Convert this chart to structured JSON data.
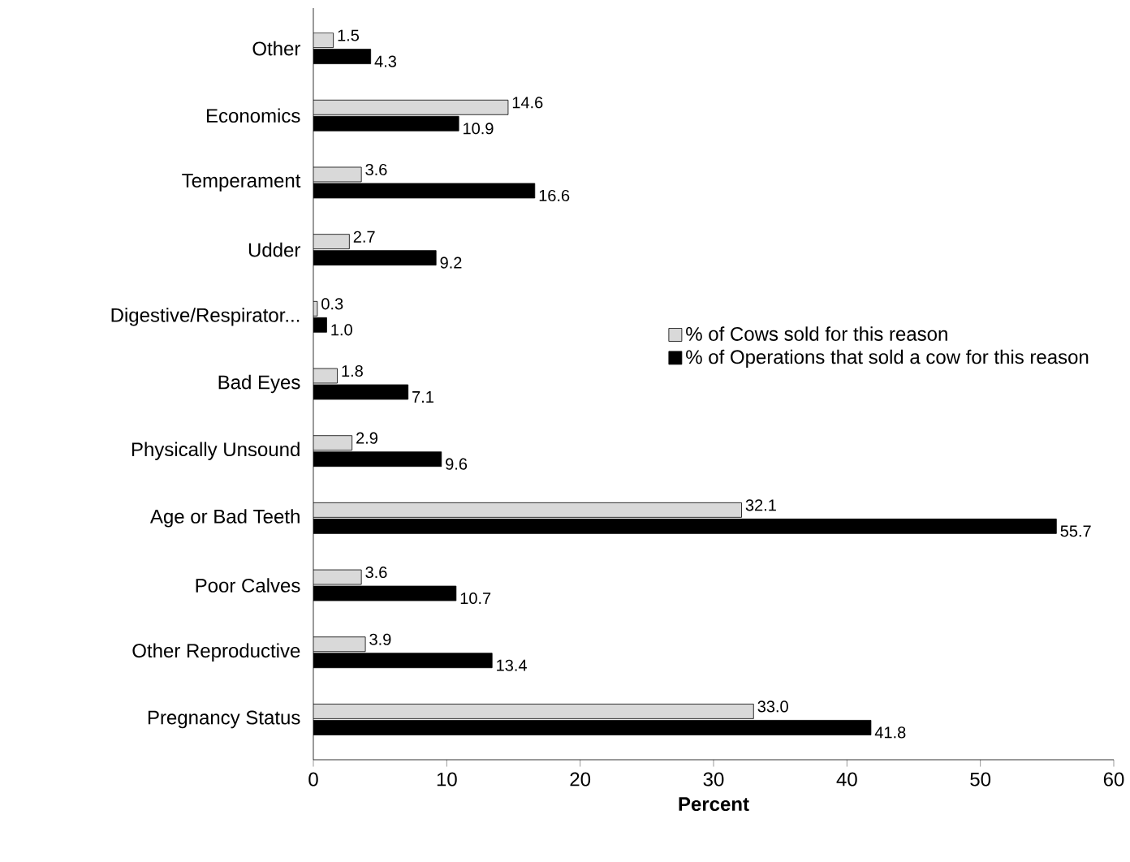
{
  "chart_data": {
    "type": "bar",
    "orientation": "horizontal",
    "xlabel": "Percent",
    "categories": [
      "Other",
      "Economics",
      "Temperament",
      "Udder",
      "Digestive/Respirator...",
      "Bad Eyes",
      "Physically Unsound",
      "Age or Bad Teeth",
      "Poor Calves",
      "Other Reproductive",
      "Pregnancy Status"
    ],
    "series": [
      {
        "name": "% of Cows sold for this reason",
        "color": "#d9d9d9",
        "values": [
          1.5,
          14.6,
          3.6,
          2.7,
          0.3,
          1.8,
          2.9,
          32.1,
          3.6,
          3.9,
          33.0
        ],
        "value_labels": [
          "1.5",
          "14.6",
          "3.6",
          "2.7",
          "0.3",
          "1.8",
          "2.9",
          "32.1",
          "3.6",
          "3.9",
          "33.0"
        ]
      },
      {
        "name": "% of Operations that sold a cow for this reason",
        "color": "#000000",
        "values": [
          4.3,
          10.9,
          16.6,
          9.2,
          1.0,
          7.1,
          9.6,
          55.7,
          10.7,
          13.4,
          41.8
        ],
        "value_labels": [
          "4.3",
          "10.9",
          "16.6",
          "9.2",
          "1.0",
          "7.1",
          "9.6",
          "55.7",
          "10.7",
          "13.4",
          "41.8"
        ]
      }
    ],
    "xlim": [
      0,
      60
    ],
    "xticks": [
      0,
      10,
      20,
      30,
      40,
      50,
      60
    ],
    "legend": "right",
    "grid": false
  }
}
